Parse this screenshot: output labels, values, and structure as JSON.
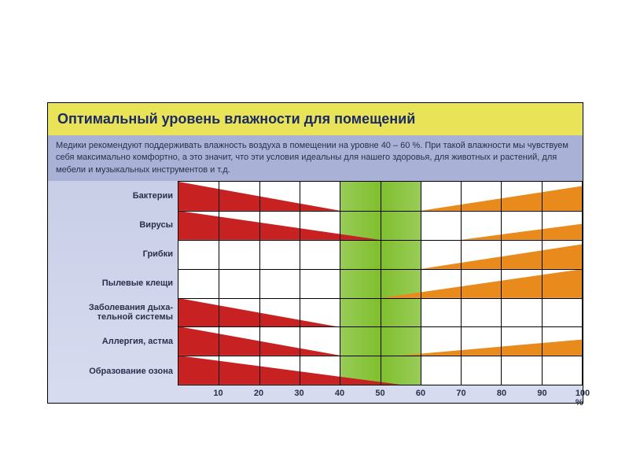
{
  "title": "Оптимальный уровень влажности для помещений",
  "intro": "Медики рекомендуют поддерживать влажность воздуха в помещении на уровне 40 – 60 %. При такой влажности мы чувствуем себя максимально комфортно, а это значит, что эти условия идеальны для нашего здоровья, для животных и растений, для мебели и музыкальных инструментов и т.д.",
  "colors": {
    "title_bg": "#e9e457",
    "title_fg": "#1b2a64",
    "intro_bg": "#a9b1d6",
    "intro_fg": "#2a2f4a",
    "chart_bg": "#ffffff",
    "grid": "#000000",
    "labels_bg_start": "#c9cee8",
    "labels_bg_end": "#d6dbef",
    "optimal_band": "#7fbf2e",
    "low_wedge": "#c72121",
    "high_wedge": "#e88b1c",
    "xtick": "#2a2f4a"
  },
  "chart": {
    "xmin": 0,
    "xmax": 100,
    "xtick_step": 10,
    "xticks": [
      "10",
      "20",
      "30",
      "40",
      "50",
      "60",
      "70",
      "80",
      "90",
      "100 %"
    ],
    "optimal_range": [
      40,
      60
    ],
    "n_rows": 7,
    "label_fontsize": 11,
    "title_fontsize": 18,
    "rows": [
      {
        "label": "Бактерии",
        "low": {
          "start": 0,
          "end": 40,
          "h_start": 1.0,
          "h_end": 0.0
        },
        "high": {
          "start": 60,
          "end": 100,
          "h_start": 0.0,
          "h_end": 0.85
        }
      },
      {
        "label": "Вирусы",
        "low": {
          "start": 0,
          "end": 50,
          "h_start": 1.0,
          "h_end": 0.0
        },
        "high": {
          "start": 70,
          "end": 100,
          "h_start": 0.0,
          "h_end": 0.55
        }
      },
      {
        "label": "Грибки",
        "high": {
          "start": 60,
          "end": 100,
          "h_start": 0.0,
          "h_end": 0.85
        }
      },
      {
        "label": "Пылевые клещи",
        "high": {
          "start": 50,
          "end": 100,
          "h_start": 0.0,
          "h_end": 1.0
        }
      },
      {
        "label": "Заболевания дыха-\nтельной системы",
        "low": {
          "start": 0,
          "end": 40,
          "h_start": 1.0,
          "h_end": 0.0
        }
      },
      {
        "label": "Аллергия, астма",
        "low": {
          "start": 0,
          "end": 40,
          "h_start": 1.0,
          "h_end": 0.0
        },
        "high": {
          "start": 55,
          "end": 100,
          "h_start": 0.0,
          "h_end": 0.55
        }
      },
      {
        "label": "Образование озона",
        "low": {
          "start": 0,
          "end": 55,
          "h_start": 1.0,
          "h_end": 0.0
        }
      }
    ]
  }
}
